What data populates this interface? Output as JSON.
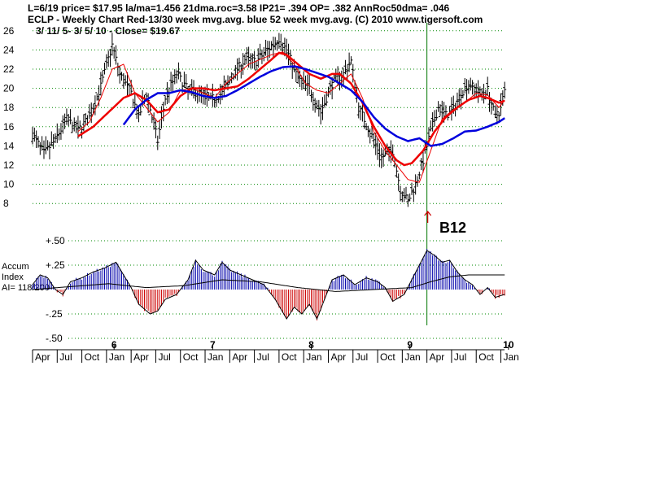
{
  "header": {
    "line1": "L=6/19  price= $17.95  la/ma=1.456 21dma.roc=3.58 IP21= .394 OP= .382 AnnRoc50dma= .046",
    "line2": "ECLP  - Weekly Chart  Red-13/30 week mvg.avg.  blue 52 week mvg.avg.  (C) 2010 www.tigersoft.com",
    "line3": "3/ 11/ 5- 3/ 5/ 10 -     Close= $19.67"
  },
  "indicator_label": {
    "line1": "Accum",
    "line2": "Index",
    "line3": "AI= 118/200"
  },
  "signal_label": "B12",
  "colors": {
    "price_bars": "#000000",
    "ma_red": "#ee0000",
    "ma_blue": "#0000dd",
    "grid": "#008800",
    "accum_pos": "#0000aa",
    "accum_neg": "#cc0000",
    "signal_line": "#007700",
    "signal_arrow": "#cc0000"
  },
  "chart_data": [
    {
      "type": "bar",
      "style": "weekly OHLC price bars with moving averages",
      "ylim": [
        7,
        27
      ],
      "yticks": [
        8,
        10,
        12,
        14,
        16,
        18,
        20,
        22,
        24,
        26
      ],
      "grid": true,
      "x_tick_labels": [
        {
          "week": 0,
          "label": "Apr"
        },
        {
          "week": 13,
          "label": "Jul"
        },
        {
          "week": 26,
          "label": "Oct"
        },
        {
          "week": 39,
          "label": "Jan"
        },
        {
          "week": 52,
          "label": "Apr"
        },
        {
          "week": 65,
          "label": "Jul"
        },
        {
          "week": 78,
          "label": "Oct"
        },
        {
          "week": 91,
          "label": "Jan"
        },
        {
          "week": 104,
          "label": "Apr"
        },
        {
          "week": 117,
          "label": "Jul"
        },
        {
          "week": 130,
          "label": "Oct"
        },
        {
          "week": 143,
          "label": "Jan"
        },
        {
          "week": 156,
          "label": "Apr"
        },
        {
          "week": 169,
          "label": "Jul"
        },
        {
          "week": 182,
          "label": "Oct"
        },
        {
          "week": 195,
          "label": "Jan"
        },
        {
          "week": 208,
          "label": "Apr"
        },
        {
          "week": 221,
          "label": "Jul"
        },
        {
          "week": 234,
          "label": "Oct"
        },
        {
          "week": 247,
          "label": "Jan"
        }
      ],
      "year_labels": [
        {
          "week": 43,
          "label": "6"
        },
        {
          "week": 95,
          "label": "7"
        },
        {
          "week": 147,
          "label": "8"
        },
        {
          "week": 199,
          "label": "9"
        },
        {
          "week": 251,
          "label": "10"
        }
      ],
      "price_close_keypoints": [
        [
          0,
          15.2
        ],
        [
          6,
          13.2
        ],
        [
          12,
          14.6
        ],
        [
          18,
          16.8
        ],
        [
          24,
          15.6
        ],
        [
          30,
          17.0
        ],
        [
          36,
          20.2
        ],
        [
          42,
          24.5
        ],
        [
          46,
          21.5
        ],
        [
          52,
          19.5
        ],
        [
          56,
          17.0
        ],
        [
          60,
          19.5
        ],
        [
          66,
          14.5
        ],
        [
          70,
          19.0
        ],
        [
          76,
          21.5
        ],
        [
          82,
          19.8
        ],
        [
          88,
          19.5
        ],
        [
          94,
          18.8
        ],
        [
          100,
          19.5
        ],
        [
          106,
          21.5
        ],
        [
          112,
          23.0
        ],
        [
          118,
          22.8
        ],
        [
          124,
          24.0
        ],
        [
          130,
          25.2
        ],
        [
          134,
          24.0
        ],
        [
          140,
          21.0
        ],
        [
          146,
          20.0
        ],
        [
          152,
          17.5
        ],
        [
          158,
          20.5
        ],
        [
          164,
          21.5
        ],
        [
          168,
          22.8
        ],
        [
          172,
          18.0
        ],
        [
          178,
          15.5
        ],
        [
          184,
          12.8
        ],
        [
          190,
          13.5
        ],
        [
          194,
          9.5
        ],
        [
          198,
          8.2
        ],
        [
          202,
          10.0
        ],
        [
          206,
          12.5
        ],
        [
          210,
          15.5
        ],
        [
          214,
          18.0
        ],
        [
          218,
          17.2
        ],
        [
          222,
          17.8
        ],
        [
          226,
          19.5
        ],
        [
          230,
          20.5
        ],
        [
          236,
          19.5
        ],
        [
          240,
          19.8
        ],
        [
          244,
          17.0
        ],
        [
          246,
          17.5
        ],
        [
          249,
          19.67
        ]
      ],
      "ma_short_keypoints": [
        [
          24,
          15.5
        ],
        [
          30,
          16.5
        ],
        [
          36,
          19.0
        ],
        [
          42,
          22.0
        ],
        [
          48,
          22.5
        ],
        [
          54,
          19.5
        ],
        [
          60,
          18.0
        ],
        [
          66,
          16.5
        ],
        [
          72,
          17.5
        ],
        [
          78,
          19.8
        ],
        [
          84,
          20.0
        ],
        [
          90,
          19.5
        ],
        [
          96,
          19.0
        ],
        [
          102,
          20.5
        ],
        [
          108,
          21.5
        ],
        [
          114,
          22.5
        ],
        [
          120,
          23.0
        ],
        [
          126,
          23.5
        ],
        [
          132,
          23.8
        ],
        [
          138,
          22.5
        ],
        [
          144,
          20.5
        ],
        [
          150,
          19.8
        ],
        [
          156,
          19.5
        ],
        [
          162,
          20.5
        ],
        [
          168,
          21.5
        ],
        [
          174,
          19.0
        ],
        [
          180,
          15.5
        ],
        [
          186,
          13.5
        ],
        [
          192,
          12.0
        ],
        [
          198,
          10.5
        ],
        [
          204,
          10.2
        ],
        [
          210,
          13.5
        ],
        [
          216,
          16.8
        ],
        [
          222,
          17.8
        ],
        [
          228,
          18.5
        ],
        [
          234,
          19.5
        ],
        [
          240,
          19.3
        ],
        [
          246,
          18.0
        ],
        [
          249,
          18.8
        ]
      ],
      "ma_red_keypoints": [
        [
          24,
          15.0
        ],
        [
          32,
          16.0
        ],
        [
          40,
          17.5
        ],
        [
          48,
          19.0
        ],
        [
          54,
          19.5
        ],
        [
          60,
          18.8
        ],
        [
          66,
          17.5
        ],
        [
          72,
          17.8
        ],
        [
          78,
          19.2
        ],
        [
          84,
          20.0
        ],
        [
          90,
          20.0
        ],
        [
          96,
          19.8
        ],
        [
          102,
          20.0
        ],
        [
          108,
          20.2
        ],
        [
          114,
          21.0
        ],
        [
          120,
          22.0
        ],
        [
          126,
          23.0
        ],
        [
          130,
          23.7
        ],
        [
          134,
          23.5
        ],
        [
          140,
          22.5
        ],
        [
          146,
          21.5
        ],
        [
          152,
          21.0
        ],
        [
          158,
          21.5
        ],
        [
          162,
          21.5
        ],
        [
          168,
          20.5
        ],
        [
          174,
          18.5
        ],
        [
          180,
          16.0
        ],
        [
          186,
          14.0
        ],
        [
          192,
          12.5
        ],
        [
          196,
          12.0
        ],
        [
          200,
          12.2
        ],
        [
          206,
          13.5
        ],
        [
          212,
          15.5
        ],
        [
          218,
          17.0
        ],
        [
          224,
          18.0
        ],
        [
          230,
          18.8
        ],
        [
          236,
          19.2
        ],
        [
          240,
          19.0
        ],
        [
          246,
          18.5
        ],
        [
          249,
          18.7
        ]
      ],
      "ma_blue_keypoints": [
        [
          48,
          16.2
        ],
        [
          54,
          17.8
        ],
        [
          60,
          18.8
        ],
        [
          66,
          19.5
        ],
        [
          72,
          19.5
        ],
        [
          78,
          19.8
        ],
        [
          84,
          19.6
        ],
        [
          90,
          19.2
        ],
        [
          96,
          19.0
        ],
        [
          102,
          19.2
        ],
        [
          108,
          19.8
        ],
        [
          114,
          20.5
        ],
        [
          120,
          21.2
        ],
        [
          126,
          21.8
        ],
        [
          132,
          22.2
        ],
        [
          138,
          22.3
        ],
        [
          144,
          22.0
        ],
        [
          150,
          21.6
        ],
        [
          156,
          21.2
        ],
        [
          162,
          20.5
        ],
        [
          168,
          19.8
        ],
        [
          174,
          18.6
        ],
        [
          180,
          17.0
        ],
        [
          186,
          15.8
        ],
        [
          192,
          15.0
        ],
        [
          198,
          14.5
        ],
        [
          204,
          14.8
        ],
        [
          210,
          14.0
        ],
        [
          216,
          14.2
        ],
        [
          222,
          14.8
        ],
        [
          228,
          15.5
        ],
        [
          234,
          15.6
        ],
        [
          240,
          16.0
        ],
        [
          246,
          16.5
        ],
        [
          249,
          16.9
        ]
      ],
      "signal_week": 208,
      "signal": "B12"
    },
    {
      "type": "area",
      "name": "Accum Index",
      "ylim": [
        -0.5,
        0.5
      ],
      "yticks": [
        0.5,
        0.25,
        -0.25,
        -0.5
      ],
      "ytick_labels": [
        "+.50",
        "+.25",
        "-.25",
        "-.50"
      ],
      "accum_keypoints": [
        [
          0,
          0.05
        ],
        [
          4,
          0.15
        ],
        [
          8,
          0.12
        ],
        [
          12,
          0.0
        ],
        [
          16,
          -0.05
        ],
        [
          20,
          0.08
        ],
        [
          26,
          0.12
        ],
        [
          32,
          0.18
        ],
        [
          38,
          0.22
        ],
        [
          44,
          0.28
        ],
        [
          48,
          0.15
        ],
        [
          52,
          0.02
        ],
        [
          56,
          -0.15
        ],
        [
          62,
          -0.25
        ],
        [
          66,
          -0.22
        ],
        [
          70,
          -0.1
        ],
        [
          76,
          -0.05
        ],
        [
          82,
          0.1
        ],
        [
          86,
          0.3
        ],
        [
          90,
          0.2
        ],
        [
          96,
          0.15
        ],
        [
          100,
          0.28
        ],
        [
          104,
          0.2
        ],
        [
          110,
          0.15
        ],
        [
          116,
          0.1
        ],
        [
          122,
          0.05
        ],
        [
          128,
          -0.1
        ],
        [
          134,
          -0.3
        ],
        [
          138,
          -0.18
        ],
        [
          142,
          -0.25
        ],
        [
          146,
          -0.15
        ],
        [
          150,
          -0.3
        ],
        [
          154,
          -0.1
        ],
        [
          158,
          0.1
        ],
        [
          164,
          0.15
        ],
        [
          170,
          0.05
        ],
        [
          176,
          0.12
        ],
        [
          182,
          0.08
        ],
        [
          186,
          0.02
        ],
        [
          190,
          -0.12
        ],
        [
          196,
          -0.05
        ],
        [
          200,
          0.1
        ],
        [
          204,
          0.25
        ],
        [
          208,
          0.4
        ],
        [
          212,
          0.35
        ],
        [
          216,
          0.28
        ],
        [
          220,
          0.3
        ],
        [
          224,
          0.18
        ],
        [
          228,
          0.1
        ],
        [
          232,
          0.05
        ],
        [
          236,
          -0.05
        ],
        [
          240,
          0.02
        ],
        [
          244,
          -0.08
        ],
        [
          249,
          -0.05
        ]
      ],
      "accum_ma_keypoints": [
        [
          0,
          0.0
        ],
        [
          20,
          0.03
        ],
        [
          40,
          0.06
        ],
        [
          60,
          0.02
        ],
        [
          80,
          0.04
        ],
        [
          100,
          0.1
        ],
        [
          120,
          0.08
        ],
        [
          140,
          0.02
        ],
        [
          160,
          -0.02
        ],
        [
          180,
          0.0
        ],
        [
          200,
          0.02
        ],
        [
          210,
          0.08
        ],
        [
          220,
          0.13
        ],
        [
          230,
          0.15
        ],
        [
          249,
          0.15
        ]
      ]
    }
  ]
}
